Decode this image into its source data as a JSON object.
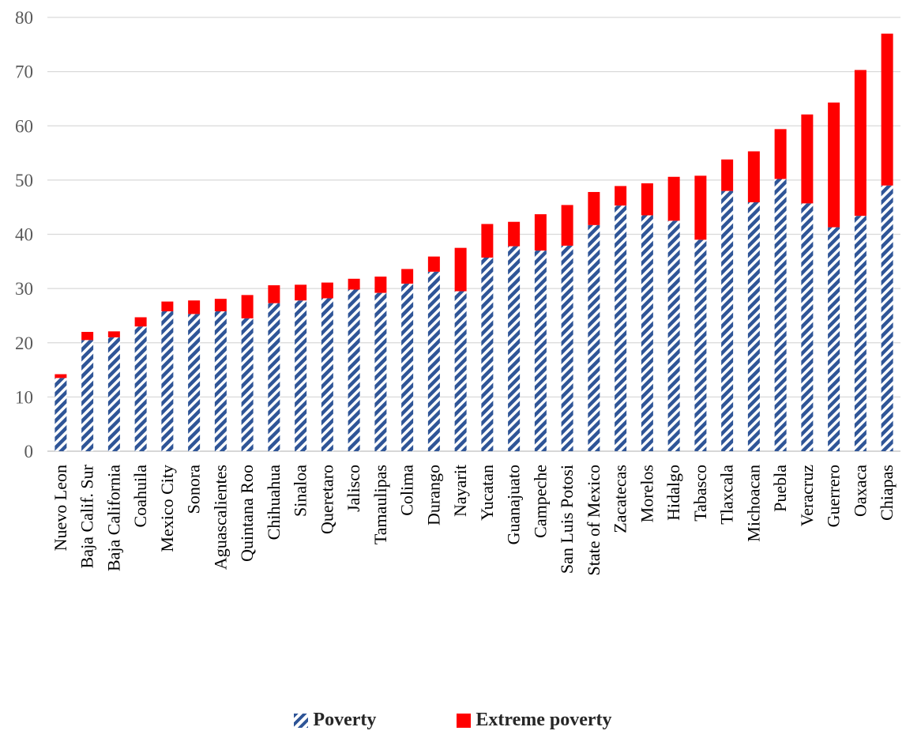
{
  "chart_data": {
    "type": "bar",
    "stacked": true,
    "categories": [
      "Nuevo Leon",
      "Baja Calif. Sur",
      "Baja California",
      "Coahuila",
      "Mexico City",
      "Sonora",
      "Aguascalientes",
      "Quintana Roo",
      "Chihuahua",
      "Sinaloa",
      "Queretaro",
      "Jalisco",
      "Tamaulipas",
      "Colima",
      "Durango",
      "Nayarit",
      "Yucatan",
      "Guanajuato",
      "Campeche",
      "San Luis Potosi",
      "State of Mexico",
      "Zacatecas",
      "Morelos",
      "Hidalgo",
      "Tabasco",
      "Tlaxcala",
      "Michoacan",
      "Puebla",
      "Veracruz",
      "Guerrero",
      "Oaxaca",
      "Chiapas"
    ],
    "series": [
      {
        "name": "Poverty",
        "color": "#2f5597",
        "pattern": "diagonal-stripes",
        "values": [
          13.5,
          20.5,
          21.0,
          23.0,
          25.8,
          25.3,
          25.8,
          24.5,
          27.3,
          27.8,
          28.2,
          29.8,
          29.2,
          30.9,
          33.1,
          29.5,
          35.7,
          37.8,
          37.0,
          37.9,
          41.7,
          45.3,
          43.5,
          42.5,
          39.0,
          48.0,
          45.9,
          50.2,
          45.7,
          41.3,
          43.4,
          49.0
        ]
      },
      {
        "name": "Extreme poverty",
        "color": "#ff0000",
        "values": [
          0.7,
          1.5,
          1.1,
          1.7,
          1.8,
          2.5,
          2.3,
          4.3,
          3.3,
          2.9,
          2.9,
          2.0,
          3.0,
          2.7,
          2.8,
          8.0,
          6.2,
          4.5,
          6.7,
          7.5,
          6.1,
          3.6,
          5.9,
          8.1,
          11.8,
          5.8,
          9.4,
          9.2,
          16.4,
          23.0,
          26.9,
          28.0
        ]
      }
    ],
    "ylim": [
      0,
      80
    ],
    "yticks": [
      "0",
      "10",
      "20",
      "30",
      "40",
      "50",
      "60",
      "70",
      "80"
    ],
    "grid": true,
    "legend_position": "bottom",
    "title": "",
    "xlabel": "",
    "ylabel": ""
  },
  "legend": {
    "poverty_label": "Poverty",
    "extreme_label": "Extreme poverty"
  }
}
